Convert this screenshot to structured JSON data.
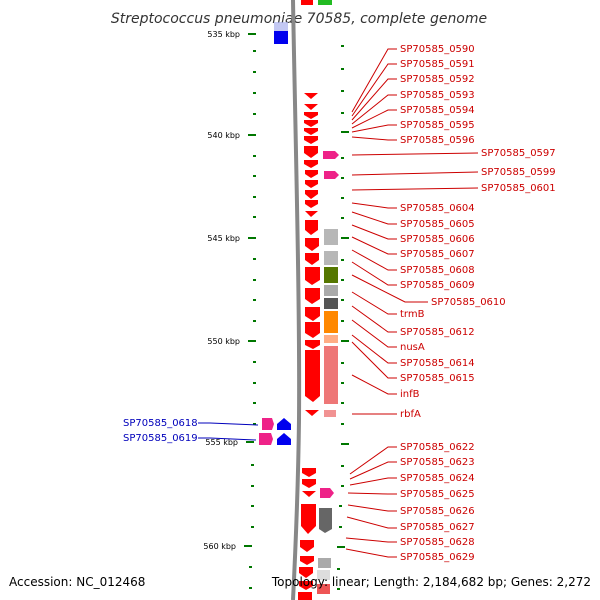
{
  "title": "Streptococcus pneumoniae 70585, complete genome",
  "footer": {
    "accession": "Accession: NC_012468",
    "stats": "Topology: linear; Length: 2,184,682 bp; Genes: 2,272"
  },
  "kbp_labels": [
    "535 kbp",
    "540 kbp",
    "545 kbp",
    "550 kbp",
    "555 kbp",
    "560 kbp"
  ],
  "right_labels": [
    "SP70585_0590",
    "SP70585_0591",
    "SP70585_0592",
    "SP70585_0593",
    "SP70585_0594",
    "SP70585_0595",
    "SP70585_0596",
    "SP70585_0597",
    "SP70585_0599",
    "SP70585_0601",
    "SP70585_0604",
    "SP70585_0605",
    "SP70585_0606",
    "SP70585_0607",
    "SP70585_0608",
    "SP70585_0609",
    "SP70585_0610",
    "trmB",
    "SP70585_0612",
    "nusA",
    "SP70585_0614",
    "SP70585_0615",
    "infB",
    "rbfA",
    "SP70585_0622",
    "SP70585_0623",
    "SP70585_0624",
    "SP70585_0625",
    "SP70585_0626",
    "SP70585_0627",
    "SP70585_0628",
    "SP70585_0629"
  ],
  "left_labels": [
    "SP70585_0618",
    "SP70585_0619"
  ],
  "colors": {
    "forward_gene": "#ff0000",
    "reverse_gene": "#0000ee",
    "pink_gene": "#ee2288",
    "label_red": "#cc0000",
    "label_blue": "#0000bb",
    "tick_green": "#007700",
    "backbone": "#888888"
  }
}
